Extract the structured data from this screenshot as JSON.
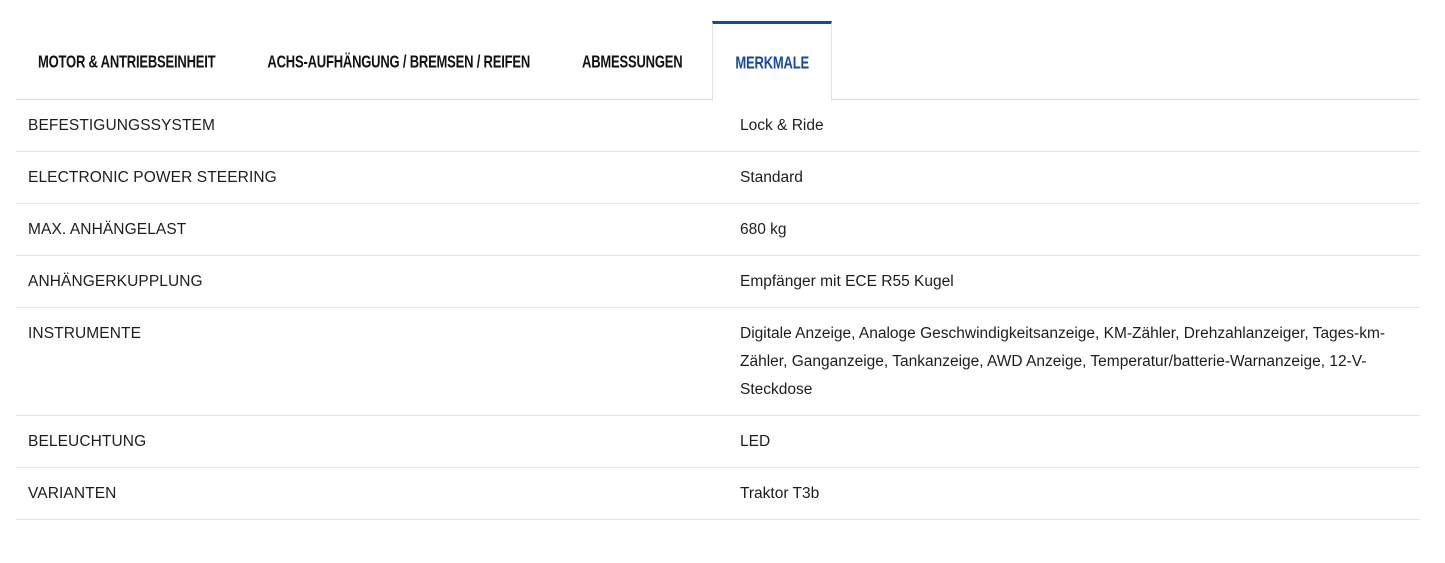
{
  "accent_color": "#164a9d",
  "divider_color": "#e4e4e4",
  "tabs": [
    {
      "label": "MOTOR & ANTRIEBSEINHEIT",
      "active": false
    },
    {
      "label": "ACHS-AUFHÄNGUNG / BREMSEN / REIFEN",
      "active": false
    },
    {
      "label": "ABMESSUNGEN",
      "active": false
    },
    {
      "label": "MERKMALE",
      "active": true
    }
  ],
  "spec_table": {
    "rows": [
      {
        "label": "BEFESTIGUNGSSYSTEM",
        "value": "Lock & Ride"
      },
      {
        "label": "ELECTRONIC POWER STEERING",
        "value": "Standard"
      },
      {
        "label": "MAX. ANHÄNGELAST",
        "value": "680 kg"
      },
      {
        "label": "ANHÄNGERKUPPLUNG",
        "value": "Empfänger mit ECE R55 Kugel"
      },
      {
        "label": "INSTRUMENTE",
        "value": "Digitale Anzeige, Analoge Geschwindigkeitsanzeige, KM-Zähler, Drehzahlanzeiger, Tages-km-Zähler, Ganganzeige, Tankanzeige, AWD Anzeige, Temperatur/batterie-Warnanzeige, 12-V-Steckdose"
      },
      {
        "label": "BELEUCHTUNG",
        "value": "LED"
      },
      {
        "label": "VARIANTEN",
        "value": "Traktor T3b"
      }
    ]
  }
}
